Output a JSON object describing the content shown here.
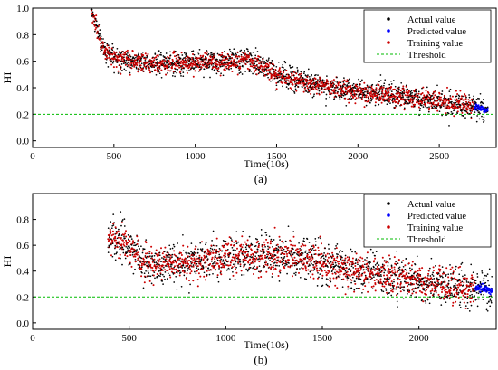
{
  "chart_data": [
    {
      "type": "scatter",
      "caption": "(a)",
      "xlabel": "Time(10s)",
      "ylabel": "HI",
      "xlim": [
        0,
        2850
      ],
      "ylim": [
        -0.05,
        1.0
      ],
      "x_ticks": [
        0,
        500,
        1000,
        1500,
        2000,
        2500
      ],
      "x_tick_labels": [
        "0",
        "500",
        "1000",
        "1500",
        "2000",
        "2500"
      ],
      "y_ticks": [
        0.0,
        0.2,
        0.4,
        0.6,
        0.8,
        1.0
      ],
      "y_tick_labels": [
        "0.0",
        "0.2",
        "0.4",
        "0.6",
        "0.8",
        "1.0"
      ],
      "grid": false,
      "legend_position": "top-right",
      "series": [
        {
          "name": "Actual value",
          "color": "#000000",
          "x_range": [
            360,
            2800
          ]
        },
        {
          "name": "Predicted value",
          "color": "#0000ff",
          "x_range": [
            2715,
            2800
          ]
        },
        {
          "name": "Training value",
          "color": "#cc0000",
          "x_range": [
            360,
            2715
          ]
        },
        {
          "name": "Threshold",
          "color": "#00bb00",
          "line_style": "dashed",
          "y": 0.2
        }
      ],
      "trend": [
        [
          360,
          0.97
        ],
        [
          400,
          0.82
        ],
        [
          450,
          0.68
        ],
        [
          500,
          0.63
        ],
        [
          600,
          0.6
        ],
        [
          800,
          0.58
        ],
        [
          1000,
          0.59
        ],
        [
          1200,
          0.6
        ],
        [
          1300,
          0.61
        ],
        [
          1400,
          0.58
        ],
        [
          1500,
          0.5
        ],
        [
          1700,
          0.43
        ],
        [
          1900,
          0.39
        ],
        [
          2100,
          0.36
        ],
        [
          2300,
          0.33
        ],
        [
          2500,
          0.29
        ],
        [
          2715,
          0.26
        ],
        [
          2800,
          0.23
        ]
      ],
      "noise": 0.045,
      "point_count": 1400
    },
    {
      "type": "scatter",
      "caption": "(b)",
      "xlabel": "Time(10s)",
      "ylabel": "HI",
      "xlim": [
        0,
        2400
      ],
      "ylim": [
        -0.05,
        1.0
      ],
      "x_ticks": [
        0,
        500,
        1000,
        1500,
        2000
      ],
      "x_tick_labels": [
        "0",
        "500",
        "1000",
        "1500",
        "2000"
      ],
      "y_ticks": [
        0.0,
        0.2,
        0.4,
        0.6,
        0.8
      ],
      "y_tick_labels": [
        "0.0",
        "0.2",
        "0.4",
        "0.6",
        "0.8"
      ],
      "grid": false,
      "legend_position": "top-right",
      "series": [
        {
          "name": "Actual value",
          "color": "#000000",
          "x_range": [
            390,
            2380
          ]
        },
        {
          "name": "Predicted value",
          "color": "#0000ff",
          "x_range": [
            2290,
            2380
          ]
        },
        {
          "name": "Training value",
          "color": "#cc0000",
          "x_range": [
            390,
            2290
          ]
        },
        {
          "name": "Threshold",
          "color": "#00bb00",
          "line_style": "dashed",
          "y": 0.2
        }
      ],
      "trend": [
        [
          390,
          0.68
        ],
        [
          450,
          0.64
        ],
        [
          500,
          0.6
        ],
        [
          550,
          0.5
        ],
        [
          600,
          0.45
        ],
        [
          800,
          0.46
        ],
        [
          1000,
          0.5
        ],
        [
          1200,
          0.53
        ],
        [
          1400,
          0.5
        ],
        [
          1600,
          0.42
        ],
        [
          1800,
          0.37
        ],
        [
          2000,
          0.32
        ],
        [
          2150,
          0.29
        ],
        [
          2290,
          0.27
        ],
        [
          2380,
          0.25
        ]
      ],
      "noise": 0.08,
      "point_count": 1300
    }
  ]
}
